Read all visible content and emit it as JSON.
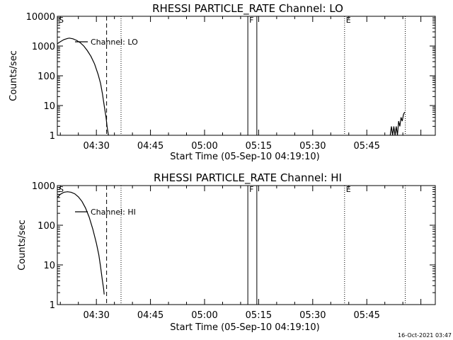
{
  "timestamp": "16-Oct-2021 03:47",
  "chart_data": [
    {
      "type": "line",
      "title": "RHESSI PARTICLE_RATE Channel: LO",
      "xlabel": "Start Time (05-Sep-10 04:19:10)",
      "ylabel": "Counts/sec",
      "y_scale": "log",
      "ylim": [
        1,
        10000
      ],
      "xlim": [
        "04:19:10",
        "06:04:00"
      ],
      "x_ticks": [
        "04:30",
        "04:45",
        "05:00",
        "05:15",
        "05:30",
        "05:45"
      ],
      "y_ticks": [
        "1",
        "10",
        "100",
        "1000",
        "10000"
      ],
      "legend": {
        "entries": [
          "Channel: LO"
        ],
        "placement": "top-left"
      },
      "markers": [
        {
          "label": "S",
          "time": "04:19:10",
          "style": "dotted"
        },
        {
          "label": "",
          "time": "04:32:50",
          "style": "dashed"
        },
        {
          "label": "",
          "time": "04:36:50",
          "style": "dotted"
        },
        {
          "label": "F",
          "time": "05:12:00",
          "style": "solid"
        },
        {
          "label": "",
          "time": "05:14:30",
          "style": "solid"
        },
        {
          "label": "E",
          "time": "05:38:50",
          "style": "dotted"
        },
        {
          "label": "",
          "time": "05:55:40",
          "style": "dotted"
        }
      ],
      "series": [
        {
          "name": "Channel: LO",
          "segments": [
            {
              "x": [
                "04:19:10",
                "04:20:00",
                "04:21:00",
                "04:22:00",
                "04:22:30",
                "04:23:30",
                "04:24:30",
                "04:25:30",
                "04:26:30",
                "04:27:30",
                "04:28:30",
                "04:29:30",
                "04:30:30",
                "04:31:10",
                "04:31:40",
                "04:32:10",
                "04:32:40",
                "04:33:00",
                "04:33:20"
              ],
              "y": [
                1200,
                1400,
                1650,
                1800,
                1850,
                1750,
                1550,
                1300,
                1000,
                700,
                450,
                250,
                110,
                55,
                25,
                10,
                4,
                1.8,
                1
              ]
            },
            {
              "x": [
                "05:51:30",
                "05:51:50",
                "05:52:10",
                "05:52:30",
                "05:52:50",
                "05:53:10",
                "05:53:30",
                "05:53:50",
                "05:54:10",
                "05:54:30",
                "05:54:50",
                "05:55:10",
                "05:55:30"
              ],
              "y": [
                1,
                2,
                1,
                2,
                1,
                2,
                1,
                3,
                2,
                4,
                3,
                5,
                6
              ]
            }
          ]
        }
      ]
    },
    {
      "type": "line",
      "title": "RHESSI PARTICLE_RATE Channel: HI",
      "xlabel": "Start Time (05-Sep-10 04:19:10)",
      "ylabel": "Counts/sec",
      "y_scale": "log",
      "ylim": [
        1,
        1000
      ],
      "xlim": [
        "04:19:10",
        "06:04:00"
      ],
      "x_ticks": [
        "04:30",
        "04:45",
        "05:00",
        "05:15",
        "05:30",
        "05:45"
      ],
      "y_ticks": [
        "1",
        "10",
        "100",
        "1000"
      ],
      "legend": {
        "entries": [
          "Channel: HI"
        ],
        "placement": "top-left"
      },
      "markers": [
        {
          "label": "S",
          "time": "04:19:10",
          "style": "dotted"
        },
        {
          "label": "",
          "time": "04:32:50",
          "style": "dashed"
        },
        {
          "label": "",
          "time": "04:36:50",
          "style": "dotted"
        },
        {
          "label": "F",
          "time": "05:12:00",
          "style": "solid"
        },
        {
          "label": "",
          "time": "05:14:30",
          "style": "solid"
        },
        {
          "label": "E",
          "time": "05:38:50",
          "style": "dotted"
        },
        {
          "label": "",
          "time": "05:55:40",
          "style": "dotted"
        }
      ],
      "series": [
        {
          "name": "Channel: HI",
          "segments": [
            {
              "x": [
                "04:19:10",
                "04:20:00",
                "04:21:00",
                "04:22:00",
                "04:23:00",
                "04:24:00",
                "04:25:00",
                "04:26:00",
                "04:27:00",
                "04:28:00",
                "04:29:00",
                "04:30:00",
                "04:30:40",
                "04:31:10",
                "04:31:40",
                "04:32:00",
                "04:32:10"
              ],
              "y": [
                500,
                600,
                680,
                700,
                680,
                620,
                520,
                400,
                270,
                160,
                80,
                35,
                18,
                9,
                4,
                2.5,
                1.8
              ]
            }
          ]
        }
      ]
    }
  ]
}
